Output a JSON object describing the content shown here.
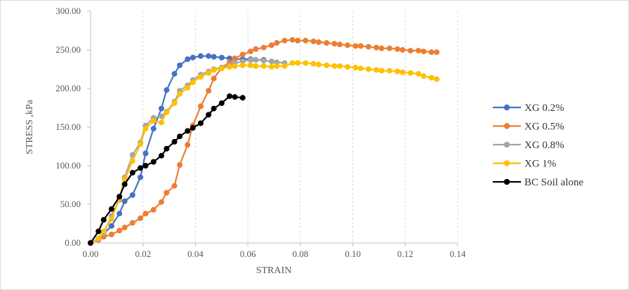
{
  "chart_data": {
    "type": "line",
    "title": "",
    "xlabel": "STRAIN",
    "ylabel": "STRESS ,kPa",
    "xlim": [
      0,
      0.14
    ],
    "ylim": [
      0,
      300
    ],
    "x_ticks": [
      "0.00",
      "0.02",
      "0.04",
      "0.06",
      "0.08",
      "0.10",
      "0.12",
      "0.14"
    ],
    "y_ticks": [
      "0.00",
      "50.00",
      "100.00",
      "150.00",
      "200.00",
      "250.00",
      "300.00"
    ],
    "grid": "vertical-dashed",
    "legend_position": "right",
    "series": [
      {
        "name": "XG 0.2%",
        "color": "#4472c4",
        "points": [
          [
            0.0,
            0
          ],
          [
            0.003,
            4
          ],
          [
            0.005,
            12
          ],
          [
            0.008,
            22
          ],
          [
            0.011,
            38
          ],
          [
            0.013,
            54
          ],
          [
            0.016,
            62
          ],
          [
            0.019,
            85
          ],
          [
            0.021,
            116
          ],
          [
            0.024,
            148
          ],
          [
            0.027,
            174
          ],
          [
            0.029,
            198
          ],
          [
            0.032,
            219
          ],
          [
            0.034,
            230
          ],
          [
            0.037,
            238
          ],
          [
            0.039,
            240
          ],
          [
            0.042,
            242
          ],
          [
            0.045,
            242
          ],
          [
            0.047,
            241
          ],
          [
            0.05,
            240
          ],
          [
            0.053,
            239
          ],
          [
            0.055,
            238
          ],
          [
            0.058,
            238
          ],
          [
            0.061,
            238
          ],
          [
            0.063,
            237
          ],
          [
            0.066,
            237
          ]
        ]
      },
      {
        "name": "XG 0.5%",
        "color": "#ed7d31",
        "points": [
          [
            0.0,
            0
          ],
          [
            0.003,
            4
          ],
          [
            0.005,
            8
          ],
          [
            0.008,
            11
          ],
          [
            0.011,
            16
          ],
          [
            0.013,
            20
          ],
          [
            0.016,
            26
          ],
          [
            0.019,
            32
          ],
          [
            0.021,
            38
          ],
          [
            0.024,
            43
          ],
          [
            0.027,
            53
          ],
          [
            0.029,
            65
          ],
          [
            0.032,
            74
          ],
          [
            0.034,
            101
          ],
          [
            0.037,
            127
          ],
          [
            0.039,
            152
          ],
          [
            0.042,
            177
          ],
          [
            0.045,
            197
          ],
          [
            0.047,
            213
          ],
          [
            0.05,
            227
          ],
          [
            0.053,
            234
          ],
          [
            0.055,
            239
          ],
          [
            0.058,
            244
          ],
          [
            0.061,
            248
          ],
          [
            0.063,
            251
          ],
          [
            0.066,
            253
          ],
          [
            0.069,
            256
          ],
          [
            0.071,
            259
          ],
          [
            0.074,
            262
          ],
          [
            0.077,
            263
          ],
          [
            0.079,
            262
          ],
          [
            0.082,
            262
          ],
          [
            0.085,
            261
          ],
          [
            0.087,
            260
          ],
          [
            0.09,
            259
          ],
          [
            0.093,
            258
          ],
          [
            0.095,
            257
          ],
          [
            0.098,
            256
          ],
          [
            0.101,
            255
          ],
          [
            0.103,
            255
          ],
          [
            0.106,
            254
          ],
          [
            0.109,
            253
          ],
          [
            0.111,
            252
          ],
          [
            0.114,
            252
          ],
          [
            0.117,
            251
          ],
          [
            0.119,
            250
          ],
          [
            0.122,
            249
          ],
          [
            0.125,
            249
          ],
          [
            0.127,
            248
          ],
          [
            0.13,
            247
          ],
          [
            0.132,
            247
          ]
        ]
      },
      {
        "name": "XG 0.8%",
        "color": "#a5a5a5",
        "points": [
          [
            0.0,
            0
          ],
          [
            0.003,
            5
          ],
          [
            0.005,
            12
          ],
          [
            0.008,
            35
          ],
          [
            0.011,
            56
          ],
          [
            0.013,
            85
          ],
          [
            0.016,
            114
          ],
          [
            0.019,
            130
          ],
          [
            0.021,
            152
          ],
          [
            0.024,
            162
          ],
          [
            0.027,
            164
          ],
          [
            0.029,
            170
          ],
          [
            0.032,
            183
          ],
          [
            0.034,
            197
          ],
          [
            0.037,
            204
          ],
          [
            0.039,
            211
          ],
          [
            0.042,
            218
          ],
          [
            0.045,
            222
          ],
          [
            0.047,
            225
          ],
          [
            0.05,
            227
          ],
          [
            0.053,
            230
          ],
          [
            0.055,
            233
          ],
          [
            0.058,
            235
          ],
          [
            0.061,
            237
          ],
          [
            0.063,
            237
          ],
          [
            0.066,
            236
          ],
          [
            0.069,
            235
          ],
          [
            0.071,
            234
          ],
          [
            0.074,
            233
          ]
        ]
      },
      {
        "name": "XG 1%",
        "color": "#ffc000",
        "points": [
          [
            0.0,
            0
          ],
          [
            0.003,
            6
          ],
          [
            0.005,
            15
          ],
          [
            0.008,
            31
          ],
          [
            0.011,
            58
          ],
          [
            0.013,
            82
          ],
          [
            0.016,
            106
          ],
          [
            0.019,
            128
          ],
          [
            0.021,
            148
          ],
          [
            0.024,
            158
          ],
          [
            0.027,
            156
          ],
          [
            0.029,
            169
          ],
          [
            0.032,
            181
          ],
          [
            0.034,
            193
          ],
          [
            0.037,
            201
          ],
          [
            0.039,
            208
          ],
          [
            0.042,
            215
          ],
          [
            0.045,
            220
          ],
          [
            0.047,
            224
          ],
          [
            0.05,
            226
          ],
          [
            0.053,
            228
          ],
          [
            0.055,
            229
          ],
          [
            0.058,
            230
          ],
          [
            0.061,
            230
          ],
          [
            0.063,
            229
          ],
          [
            0.066,
            229
          ],
          [
            0.069,
            228
          ],
          [
            0.071,
            229
          ],
          [
            0.074,
            229
          ],
          [
            0.077,
            233
          ],
          [
            0.079,
            233
          ],
          [
            0.082,
            233
          ],
          [
            0.085,
            232
          ],
          [
            0.087,
            231
          ],
          [
            0.09,
            230
          ],
          [
            0.093,
            229
          ],
          [
            0.095,
            229
          ],
          [
            0.098,
            228
          ],
          [
            0.101,
            227
          ],
          [
            0.103,
            226
          ],
          [
            0.106,
            225
          ],
          [
            0.109,
            224
          ],
          [
            0.111,
            223
          ],
          [
            0.114,
            223
          ],
          [
            0.117,
            222
          ],
          [
            0.119,
            221
          ],
          [
            0.122,
            220
          ],
          [
            0.125,
            219
          ],
          [
            0.127,
            216
          ],
          [
            0.13,
            214
          ],
          [
            0.132,
            212
          ]
        ]
      },
      {
        "name": "BC Soil alone",
        "color": "#000000",
        "points": [
          [
            0.0,
            0
          ],
          [
            0.003,
            15
          ],
          [
            0.005,
            30
          ],
          [
            0.008,
            44
          ],
          [
            0.011,
            60
          ],
          [
            0.013,
            76
          ],
          [
            0.016,
            91
          ],
          [
            0.019,
            97
          ],
          [
            0.021,
            100
          ],
          [
            0.024,
            105
          ],
          [
            0.027,
            113
          ],
          [
            0.029,
            122
          ],
          [
            0.032,
            131
          ],
          [
            0.034,
            138
          ],
          [
            0.037,
            145
          ],
          [
            0.039,
            149
          ],
          [
            0.042,
            155
          ],
          [
            0.045,
            166
          ],
          [
            0.047,
            174
          ],
          [
            0.05,
            181
          ],
          [
            0.053,
            190
          ],
          [
            0.055,
            189
          ],
          [
            0.058,
            188
          ]
        ]
      }
    ]
  }
}
